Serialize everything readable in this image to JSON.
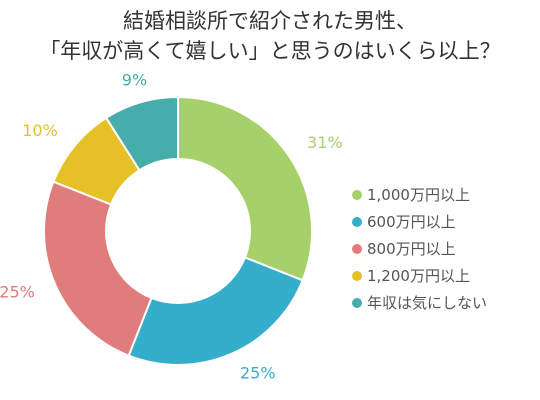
{
  "chart_data": {
    "type": "pie",
    "title_lines": [
      "結婚相談所で紹介された男性、",
      "「年収が高くて嬉しい」と思うのはいくら以上？"
    ],
    "categories": [
      "1,000万円以上",
      "600万円以上",
      "800万円以上",
      "1,200万円以上",
      "年収は気にしない"
    ],
    "values": [
      31,
      25,
      25,
      10,
      9
    ],
    "data_labels": [
      "31%",
      "25%",
      "25%",
      "10%",
      "9%"
    ],
    "colors": [
      "#a6d06a",
      "#35aecb",
      "#e07c7c",
      "#e5c026",
      "#46adab"
    ],
    "donut": true,
    "legend_position": "right"
  }
}
